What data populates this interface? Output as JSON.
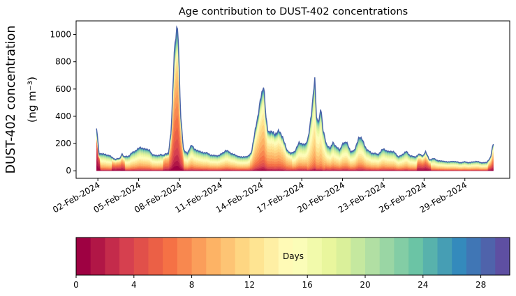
{
  "chart_data": {
    "type": "area",
    "title": "Age contribution to DUST-402 concentrations",
    "ylabel_line1": "DUST-402 concentration",
    "ylabel_line2": "(ng m⁻³)",
    "xlabel": "",
    "ylim": [
      -55,
      1100
    ],
    "yticks": [
      0,
      200,
      400,
      600,
      800,
      1000
    ],
    "ytick_labels": [
      "0",
      "200",
      "400",
      "600",
      "800",
      "1000"
    ],
    "xlim_days": [
      -0.6,
      31.3
    ],
    "xticks_days": [
      1,
      4,
      7,
      10,
      13,
      16,
      19,
      22,
      25,
      28
    ],
    "xtick_labels": [
      "02-Feb-2024",
      "05-Feb-2024",
      "08-Feb-2024",
      "11-Feb-2024",
      "14-Feb-2024",
      "17-Feb-2024",
      "20-Feb-2024",
      "23-Feb-2024",
      "26-Feb-2024",
      "29-Feb-2024"
    ],
    "start_day": 0.9,
    "end_day": 30.1,
    "total_profile": [
      [
        0.9,
        300
      ],
      [
        1.0,
        250
      ],
      [
        1.05,
        130
      ],
      [
        1.5,
        120
      ],
      [
        1.8,
        115
      ],
      [
        2.0,
        100
      ],
      [
        2.3,
        85
      ],
      [
        2.6,
        90
      ],
      [
        2.8,
        130
      ],
      [
        2.9,
        100
      ],
      [
        3.3,
        110
      ],
      [
        3.5,
        130
      ],
      [
        3.8,
        150
      ],
      [
        4.1,
        170
      ],
      [
        4.5,
        160
      ],
      [
        4.8,
        150
      ],
      [
        5.0,
        120
      ],
      [
        5.3,
        110
      ],
      [
        5.6,
        120
      ],
      [
        5.8,
        110
      ],
      [
        6.0,
        130
      ],
      [
        6.2,
        125
      ],
      [
        6.4,
        300
      ],
      [
        6.6,
        850
      ],
      [
        6.75,
        980
      ],
      [
        6.9,
        1050
      ],
      [
        7.0,
        700
      ],
      [
        7.1,
        400
      ],
      [
        7.3,
        150
      ],
      [
        7.6,
        130
      ],
      [
        7.9,
        190
      ],
      [
        8.1,
        160
      ],
      [
        8.5,
        140
      ],
      [
        9.0,
        130
      ],
      [
        9.5,
        110
      ],
      [
        10.0,
        115
      ],
      [
        10.4,
        150
      ],
      [
        10.8,
        130
      ],
      [
        11.2,
        110
      ],
      [
        11.6,
        100
      ],
      [
        12.0,
        105
      ],
      [
        12.3,
        130
      ],
      [
        12.6,
        320
      ],
      [
        12.8,
        400
      ],
      [
        13.0,
        560
      ],
      [
        13.2,
        630
      ],
      [
        13.35,
        400
      ],
      [
        13.5,
        300
      ],
      [
        13.8,
        280
      ],
      [
        14.0,
        270
      ],
      [
        14.3,
        290
      ],
      [
        14.6,
        250
      ],
      [
        14.9,
        150
      ],
      [
        15.2,
        130
      ],
      [
        15.5,
        140
      ],
      [
        15.8,
        210
      ],
      [
        16.1,
        190
      ],
      [
        16.3,
        200
      ],
      [
        16.5,
        250
      ],
      [
        16.7,
        400
      ],
      [
        16.85,
        580
      ],
      [
        16.95,
        700
      ],
      [
        17.1,
        350
      ],
      [
        17.3,
        380
      ],
      [
        17.4,
        490
      ],
      [
        17.55,
        300
      ],
      [
        17.8,
        200
      ],
      [
        18.1,
        160
      ],
      [
        18.3,
        210
      ],
      [
        18.5,
        180
      ],
      [
        18.8,
        150
      ],
      [
        19.0,
        200
      ],
      [
        19.3,
        210
      ],
      [
        19.6,
        140
      ],
      [
        19.9,
        150
      ],
      [
        20.2,
        250
      ],
      [
        20.5,
        220
      ],
      [
        20.8,
        150
      ],
      [
        21.2,
        130
      ],
      [
        21.6,
        120
      ],
      [
        22.0,
        160
      ],
      [
        22.4,
        140
      ],
      [
        22.8,
        140
      ],
      [
        23.1,
        100
      ],
      [
        23.4,
        120
      ],
      [
        23.7,
        140
      ],
      [
        24.0,
        110
      ],
      [
        24.3,
        100
      ],
      [
        24.6,
        120
      ],
      [
        24.9,
        110
      ],
      [
        25.1,
        140
      ],
      [
        25.4,
        80
      ],
      [
        25.7,
        90
      ],
      [
        26.0,
        75
      ],
      [
        26.4,
        70
      ],
      [
        26.8,
        65
      ],
      [
        27.2,
        70
      ],
      [
        27.6,
        60
      ],
      [
        28.0,
        65
      ],
      [
        28.4,
        60
      ],
      [
        28.8,
        70
      ],
      [
        29.2,
        60
      ],
      [
        29.6,
        60
      ],
      [
        29.9,
        100
      ],
      [
        30.0,
        160
      ],
      [
        30.1,
        200
      ]
    ],
    "age_bins_days": [
      0,
      30
    ],
    "colormap": "Spectral",
    "colors": [
      "#9e0142",
      "#d53e4f",
      "#f46d43",
      "#fdae61",
      "#fee08b",
      "#ffffbf",
      "#e6f598",
      "#abdda4",
      "#66c2a5",
      "#3288bd",
      "#5e4fa2"
    ]
  },
  "colorbar": {
    "label": "Days",
    "range": [
      0,
      30
    ],
    "n_segments": 30,
    "ticks": [
      0,
      4,
      8,
      12,
      16,
      20,
      24,
      28
    ],
    "tick_labels": [
      "0",
      "4",
      "8",
      "12",
      "16",
      "20",
      "24",
      "28"
    ]
  }
}
